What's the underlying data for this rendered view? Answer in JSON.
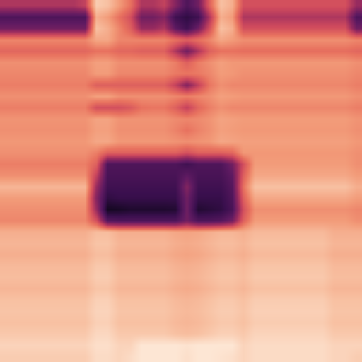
{
  "chart_data": {
    "type": "heatmap",
    "tick_labels": false,
    "cells": [
      [
        0.45,
        0.45,
        0.45,
        0.45,
        0.45,
        0.45,
        0.45,
        0.5,
        0.88,
        0.85,
        0.75,
        0.65,
        0.45,
        0.45,
        0.5,
        0.35,
        0.2,
        0.3,
        0.6,
        0.85,
        0.8,
        0.55,
        0.55,
        0.55,
        0.55,
        0.55,
        0.55,
        0.55,
        0.55,
        0.55,
        0.55,
        0.4
      ],
      [
        0.2,
        0.2,
        0.2,
        0.2,
        0.2,
        0.2,
        0.2,
        0.2,
        0.8,
        0.75,
        0.65,
        0.55,
        0.3,
        0.3,
        0.35,
        0.15,
        0.1,
        0.15,
        0.45,
        0.8,
        0.75,
        0.45,
        0.45,
        0.45,
        0.45,
        0.45,
        0.45,
        0.45,
        0.45,
        0.45,
        0.45,
        0.2
      ],
      [
        0.3,
        0.3,
        0.3,
        0.3,
        0.3,
        0.3,
        0.3,
        0.3,
        0.85,
        0.8,
        0.7,
        0.6,
        0.4,
        0.4,
        0.45,
        0.25,
        0.15,
        0.3,
        0.55,
        0.85,
        0.8,
        0.55,
        0.55,
        0.55,
        0.55,
        0.55,
        0.55,
        0.55,
        0.55,
        0.55,
        0.55,
        0.3
      ],
      [
        0.7,
        0.7,
        0.7,
        0.7,
        0.7,
        0.7,
        0.7,
        0.7,
        0.78,
        0.78,
        0.7,
        0.7,
        0.7,
        0.7,
        0.7,
        0.65,
        0.6,
        0.65,
        0.7,
        0.78,
        0.75,
        0.72,
        0.72,
        0.72,
        0.72,
        0.72,
        0.72,
        0.72,
        0.72,
        0.72,
        0.72,
        0.7
      ],
      [
        0.62,
        0.62,
        0.62,
        0.62,
        0.62,
        0.62,
        0.62,
        0.62,
        0.65,
        0.65,
        0.62,
        0.62,
        0.6,
        0.6,
        0.6,
        0.45,
        0.3,
        0.45,
        0.6,
        0.65,
        0.65,
        0.64,
        0.64,
        0.64,
        0.64,
        0.64,
        0.64,
        0.64,
        0.64,
        0.64,
        0.64,
        0.62
      ],
      [
        0.72,
        0.72,
        0.72,
        0.72,
        0.72,
        0.72,
        0.72,
        0.72,
        0.76,
        0.76,
        0.72,
        0.72,
        0.72,
        0.72,
        0.72,
        0.68,
        0.6,
        0.68,
        0.72,
        0.76,
        0.74,
        0.74,
        0.74,
        0.74,
        0.74,
        0.74,
        0.74,
        0.74,
        0.74,
        0.74,
        0.74,
        0.72
      ],
      [
        0.7,
        0.7,
        0.7,
        0.7,
        0.7,
        0.7,
        0.7,
        0.7,
        0.75,
        0.75,
        0.7,
        0.7,
        0.7,
        0.7,
        0.7,
        0.67,
        0.66,
        0.67,
        0.7,
        0.75,
        0.74,
        0.72,
        0.72,
        0.72,
        0.72,
        0.72,
        0.72,
        0.72,
        0.72,
        0.72,
        0.72,
        0.7
      ],
      [
        0.68,
        0.68,
        0.68,
        0.68,
        0.68,
        0.68,
        0.68,
        0.68,
        0.6,
        0.6,
        0.6,
        0.6,
        0.6,
        0.6,
        0.6,
        0.5,
        0.35,
        0.5,
        0.66,
        0.72,
        0.7,
        0.7,
        0.7,
        0.7,
        0.7,
        0.7,
        0.7,
        0.7,
        0.7,
        0.7,
        0.7,
        0.68
      ],
      [
        0.72,
        0.72,
        0.72,
        0.72,
        0.72,
        0.72,
        0.72,
        0.72,
        0.76,
        0.76,
        0.72,
        0.72,
        0.72,
        0.72,
        0.72,
        0.7,
        0.68,
        0.7,
        0.72,
        0.76,
        0.75,
        0.74,
        0.74,
        0.74,
        0.74,
        0.74,
        0.74,
        0.74,
        0.74,
        0.74,
        0.74,
        0.72
      ],
      [
        0.68,
        0.68,
        0.68,
        0.68,
        0.68,
        0.68,
        0.68,
        0.68,
        0.55,
        0.55,
        0.55,
        0.58,
        0.65,
        0.66,
        0.66,
        0.6,
        0.5,
        0.62,
        0.68,
        0.72,
        0.7,
        0.7,
        0.7,
        0.7,
        0.7,
        0.7,
        0.7,
        0.7,
        0.7,
        0.7,
        0.7,
        0.68
      ],
      [
        0.73,
        0.73,
        0.73,
        0.73,
        0.73,
        0.73,
        0.73,
        0.73,
        0.77,
        0.77,
        0.73,
        0.73,
        0.73,
        0.73,
        0.73,
        0.71,
        0.7,
        0.71,
        0.73,
        0.77,
        0.76,
        0.75,
        0.75,
        0.75,
        0.75,
        0.75,
        0.75,
        0.75,
        0.75,
        0.75,
        0.75,
        0.73
      ],
      [
        0.72,
        0.72,
        0.72,
        0.72,
        0.72,
        0.72,
        0.72,
        0.72,
        0.76,
        0.76,
        0.72,
        0.72,
        0.72,
        0.72,
        0.72,
        0.69,
        0.65,
        0.69,
        0.72,
        0.76,
        0.75,
        0.74,
        0.74,
        0.74,
        0.74,
        0.74,
        0.74,
        0.74,
        0.74,
        0.74,
        0.74,
        0.72
      ],
      [
        0.74,
        0.74,
        0.74,
        0.74,
        0.74,
        0.74,
        0.74,
        0.74,
        0.78,
        0.78,
        0.74,
        0.74,
        0.74,
        0.74,
        0.74,
        0.73,
        0.72,
        0.73,
        0.74,
        0.78,
        0.77,
        0.76,
        0.76,
        0.76,
        0.76,
        0.76,
        0.76,
        0.76,
        0.76,
        0.76,
        0.76,
        0.74
      ],
      [
        0.72,
        0.72,
        0.72,
        0.72,
        0.72,
        0.72,
        0.72,
        0.72,
        0.68,
        0.6,
        0.6,
        0.6,
        0.6,
        0.6,
        0.6,
        0.6,
        0.55,
        0.6,
        0.6,
        0.6,
        0.62,
        0.74,
        0.74,
        0.74,
        0.74,
        0.74,
        0.74,
        0.74,
        0.74,
        0.74,
        0.74,
        0.72
      ],
      [
        0.68,
        0.68,
        0.68,
        0.68,
        0.68,
        0.68,
        0.68,
        0.68,
        0.6,
        0.2,
        0.2,
        0.2,
        0.2,
        0.2,
        0.2,
        0.2,
        0.15,
        0.2,
        0.2,
        0.2,
        0.3,
        0.55,
        0.75,
        0.75,
        0.75,
        0.75,
        0.75,
        0.75,
        0.75,
        0.75,
        0.75,
        0.72
      ],
      [
        0.72,
        0.72,
        0.72,
        0.72,
        0.72,
        0.72,
        0.72,
        0.72,
        0.5,
        0.18,
        0.18,
        0.18,
        0.18,
        0.18,
        0.18,
        0.18,
        0.25,
        0.18,
        0.18,
        0.18,
        0.25,
        0.6,
        0.78,
        0.78,
        0.78,
        0.78,
        0.78,
        0.78,
        0.78,
        0.78,
        0.78,
        0.75
      ],
      [
        0.82,
        0.82,
        0.82,
        0.82,
        0.82,
        0.82,
        0.82,
        0.82,
        0.4,
        0.15,
        0.15,
        0.15,
        0.15,
        0.15,
        0.15,
        0.15,
        0.35,
        0.15,
        0.15,
        0.15,
        0.22,
        0.65,
        0.85,
        0.85,
        0.85,
        0.85,
        0.85,
        0.85,
        0.85,
        0.85,
        0.85,
        0.8
      ],
      [
        0.75,
        0.75,
        0.75,
        0.75,
        0.75,
        0.75,
        0.75,
        0.75,
        0.35,
        0.1,
        0.12,
        0.12,
        0.12,
        0.12,
        0.12,
        0.12,
        0.3,
        0.12,
        0.12,
        0.12,
        0.2,
        0.6,
        0.78,
        0.78,
        0.78,
        0.78,
        0.78,
        0.78,
        0.78,
        0.78,
        0.78,
        0.75
      ],
      [
        0.72,
        0.72,
        0.72,
        0.72,
        0.72,
        0.72,
        0.72,
        0.72,
        0.4,
        0.02,
        0.03,
        0.05,
        0.05,
        0.05,
        0.05,
        0.06,
        0.3,
        0.06,
        0.08,
        0.1,
        0.18,
        0.55,
        0.72,
        0.72,
        0.72,
        0.72,
        0.72,
        0.72,
        0.72,
        0.72,
        0.72,
        0.7
      ],
      [
        0.7,
        0.7,
        0.7,
        0.7,
        0.7,
        0.7,
        0.7,
        0.7,
        0.55,
        0.22,
        0.2,
        0.2,
        0.2,
        0.2,
        0.2,
        0.2,
        0.3,
        0.2,
        0.2,
        0.22,
        0.3,
        0.6,
        0.75,
        0.75,
        0.75,
        0.75,
        0.75,
        0.75,
        0.75,
        0.75,
        0.75,
        0.72
      ],
      [
        0.8,
        0.8,
        0.8,
        0.8,
        0.8,
        0.8,
        0.8,
        0.8,
        0.84,
        0.84,
        0.8,
        0.8,
        0.8,
        0.8,
        0.8,
        0.78,
        0.77,
        0.78,
        0.8,
        0.82,
        0.82,
        0.8,
        0.83,
        0.83,
        0.83,
        0.83,
        0.83,
        0.83,
        0.83,
        0.8,
        0.8,
        0.8
      ],
      [
        0.82,
        0.82,
        0.82,
        0.82,
        0.82,
        0.82,
        0.82,
        0.82,
        0.86,
        0.86,
        0.82,
        0.82,
        0.82,
        0.82,
        0.82,
        0.8,
        0.79,
        0.8,
        0.82,
        0.84,
        0.84,
        0.82,
        0.85,
        0.85,
        0.85,
        0.85,
        0.85,
        0.85,
        0.85,
        0.82,
        0.82,
        0.82
      ],
      [
        0.8,
        0.8,
        0.8,
        0.8,
        0.8,
        0.8,
        0.8,
        0.8,
        0.84,
        0.84,
        0.8,
        0.8,
        0.8,
        0.8,
        0.8,
        0.78,
        0.77,
        0.78,
        0.8,
        0.82,
        0.82,
        0.8,
        0.83,
        0.83,
        0.83,
        0.83,
        0.83,
        0.83,
        0.83,
        0.8,
        0.8,
        0.8
      ],
      [
        0.83,
        0.83,
        0.83,
        0.83,
        0.83,
        0.83,
        0.83,
        0.83,
        0.87,
        0.87,
        0.83,
        0.83,
        0.83,
        0.83,
        0.83,
        0.81,
        0.8,
        0.81,
        0.83,
        0.85,
        0.85,
        0.83,
        0.86,
        0.86,
        0.86,
        0.86,
        0.86,
        0.86,
        0.86,
        0.83,
        0.83,
        0.83
      ],
      [
        0.84,
        0.84,
        0.84,
        0.84,
        0.84,
        0.84,
        0.84,
        0.84,
        0.88,
        0.88,
        0.84,
        0.84,
        0.84,
        0.84,
        0.84,
        0.82,
        0.81,
        0.82,
        0.84,
        0.86,
        0.86,
        0.84,
        0.87,
        0.87,
        0.87,
        0.87,
        0.87,
        0.87,
        0.87,
        0.84,
        0.84,
        0.84
      ],
      [
        0.82,
        0.82,
        0.82,
        0.82,
        0.82,
        0.82,
        0.82,
        0.82,
        0.86,
        0.86,
        0.82,
        0.82,
        0.82,
        0.82,
        0.82,
        0.8,
        0.79,
        0.8,
        0.82,
        0.84,
        0.84,
        0.82,
        0.85,
        0.85,
        0.85,
        0.85,
        0.85,
        0.85,
        0.85,
        0.82,
        0.82,
        0.82
      ],
      [
        0.85,
        0.85,
        0.85,
        0.85,
        0.85,
        0.85,
        0.85,
        0.85,
        0.89,
        0.89,
        0.85,
        0.85,
        0.85,
        0.85,
        0.85,
        0.83,
        0.82,
        0.83,
        0.85,
        0.87,
        0.87,
        0.85,
        0.88,
        0.88,
        0.88,
        0.88,
        0.88,
        0.88,
        0.88,
        0.85,
        0.85,
        0.85
      ],
      [
        0.86,
        0.86,
        0.86,
        0.86,
        0.86,
        0.86,
        0.86,
        0.86,
        0.9,
        0.9,
        0.86,
        0.86,
        0.86,
        0.86,
        0.86,
        0.84,
        0.83,
        0.84,
        0.86,
        0.88,
        0.88,
        0.86,
        0.89,
        0.89,
        0.89,
        0.89,
        0.89,
        0.89,
        0.89,
        0.86,
        0.86,
        0.86
      ],
      [
        0.85,
        0.85,
        0.85,
        0.85,
        0.85,
        0.85,
        0.85,
        0.85,
        0.89,
        0.89,
        0.85,
        0.85,
        0.85,
        0.85,
        0.85,
        0.83,
        0.82,
        0.83,
        0.85,
        0.87,
        0.87,
        0.85,
        0.88,
        0.88,
        0.88,
        0.88,
        0.88,
        0.88,
        0.88,
        0.85,
        0.85,
        0.85
      ],
      [
        0.87,
        0.87,
        0.87,
        0.87,
        0.87,
        0.87,
        0.87,
        0.87,
        0.91,
        0.91,
        0.87,
        0.87,
        0.87,
        0.87,
        0.87,
        0.85,
        0.84,
        0.85,
        0.87,
        0.89,
        0.89,
        0.87,
        0.9,
        0.9,
        0.9,
        0.9,
        0.9,
        0.9,
        0.9,
        0.87,
        0.87,
        0.87
      ],
      [
        0.9,
        0.9,
        0.9,
        0.9,
        0.9,
        0.9,
        0.9,
        0.9,
        0.93,
        0.93,
        0.9,
        0.9,
        0.95,
        0.95,
        0.95,
        0.95,
        0.94,
        0.95,
        0.95,
        0.95,
        0.95,
        0.9,
        0.92,
        0.92,
        0.92,
        0.92,
        0.92,
        0.92,
        0.92,
        0.9,
        0.9,
        0.9
      ],
      [
        0.88,
        0.88,
        0.88,
        0.88,
        0.88,
        0.88,
        0.88,
        0.88,
        0.92,
        0.92,
        0.9,
        0.92,
        0.95,
        0.95,
        0.95,
        0.95,
        0.93,
        0.95,
        0.95,
        0.94,
        0.93,
        0.9,
        0.92,
        0.92,
        0.92,
        0.92,
        0.92,
        0.92,
        0.92,
        0.9,
        0.9,
        0.88
      ]
    ]
  }
}
